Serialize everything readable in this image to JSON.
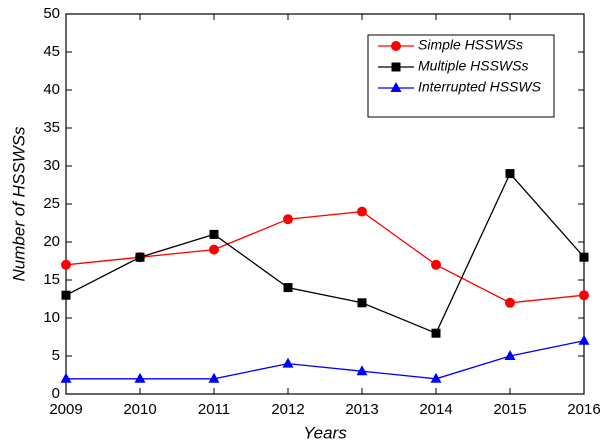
{
  "chart_data": {
    "type": "line",
    "x_label": "Years",
    "y_label": "Number of HSSWSs",
    "x": [
      2009,
      2010,
      2011,
      2012,
      2013,
      2014,
      2015,
      2016
    ],
    "series": [
      {
        "name": "Simple HSSWSs",
        "color": "#ff0000",
        "marker": "circle",
        "values": [
          17,
          18,
          19,
          23,
          24,
          17,
          12,
          13
        ]
      },
      {
        "name": "Multiple HSSWSs",
        "color": "#000000",
        "marker": "square",
        "values": [
          13,
          18,
          21,
          14,
          12,
          8,
          29,
          18
        ]
      },
      {
        "name": "Interrupted HSSWS",
        "color": "#0000ff",
        "marker": "triangle",
        "values": [
          2,
          2,
          2,
          4,
          3,
          2,
          5,
          7
        ]
      }
    ],
    "xlim": [
      2009,
      2016
    ],
    "xticks": [
      2009,
      2010,
      2011,
      2012,
      2013,
      2014,
      2015,
      2016
    ],
    "ylim": [
      0,
      50
    ],
    "yticks": [
      0,
      5,
      10,
      15,
      20,
      25,
      30,
      35,
      40,
      45,
      50
    ]
  }
}
